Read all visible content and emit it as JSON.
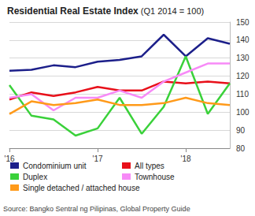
{
  "chart_data": {
    "type": "line",
    "title": "Residential Real Estate Index (Q1 2014 = 100)",
    "source": "Source: Bangko Sentral ng Pilipinas, Global Property Guide",
    "categories": [
      "'16",
      null,
      null,
      null,
      "'17",
      null,
      null,
      null,
      "'18",
      null,
      null
    ],
    "series": [
      {
        "name": "Condominium unit",
        "color": "#1c1f8a",
        "values": [
          123,
          123.5,
          126,
          125,
          128,
          129,
          131,
          143,
          131,
          141,
          138
        ]
      },
      {
        "name": "All types",
        "color": "#e8101a",
        "values": [
          107,
          111,
          109,
          111,
          114,
          112,
          112,
          117,
          116,
          117,
          116
        ]
      },
      {
        "name": "Duplex",
        "color": "#3ad13a",
        "values": [
          115,
          98,
          96,
          87,
          91,
          108,
          88,
          103,
          131,
          99,
          116
        ]
      },
      {
        "name": "Townhouse",
        "color": "#f78af7",
        "values": [
          108,
          110,
          101,
          108,
          108,
          112,
          108,
          117,
          122,
          127,
          127
        ]
      },
      {
        "name": "Single detached / attached house",
        "color": "#ff9a1a",
        "values": [
          99,
          106,
          104,
          105,
          107,
          104,
          104,
          105,
          108,
          105,
          104
        ]
      }
    ],
    "ylim": [
      80,
      150
    ],
    "yticks": [
      80,
      90,
      100,
      110,
      120,
      130,
      140,
      150
    ],
    "grid": true,
    "legend": "bottom"
  }
}
